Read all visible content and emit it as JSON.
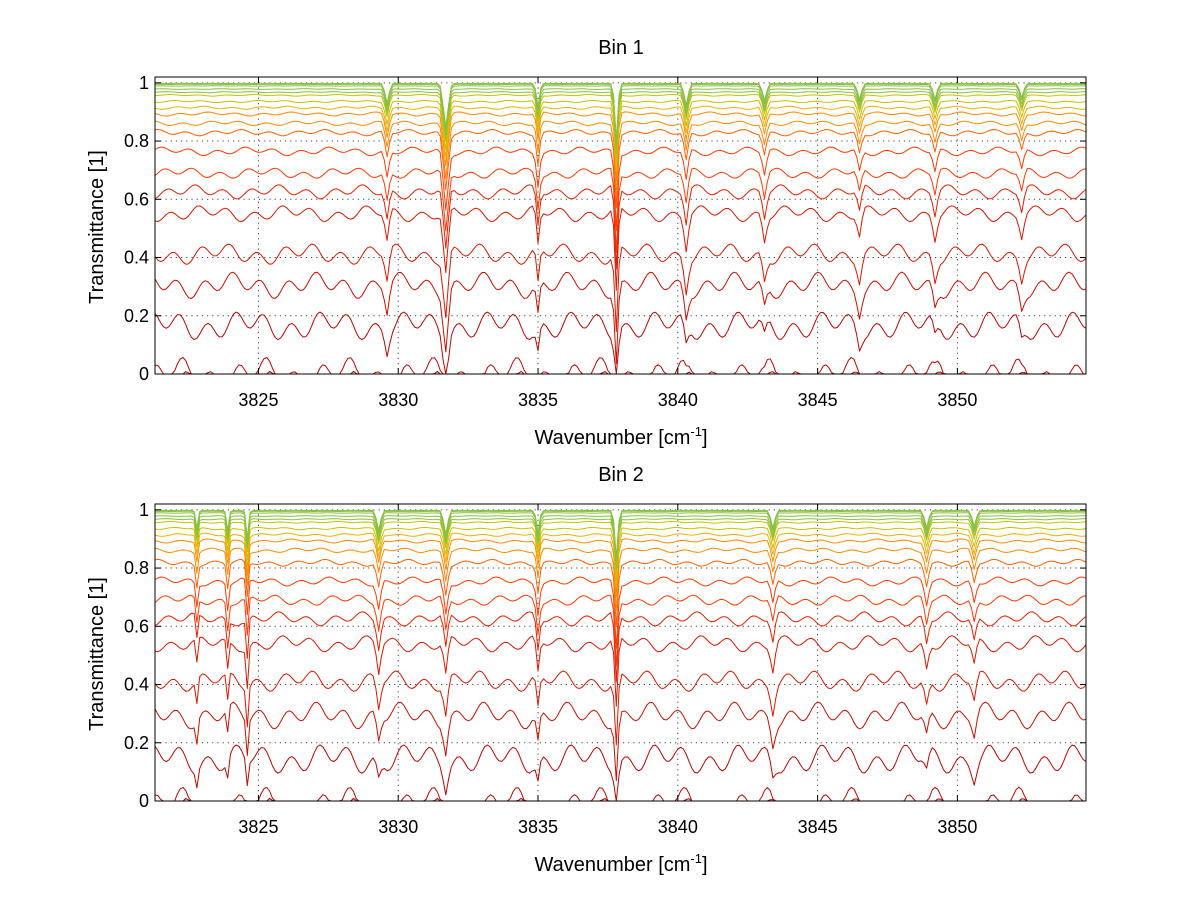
{
  "chart_data": [
    {
      "type": "line",
      "title": "Bin 1",
      "xlabel": "Wavenumber [cm",
      "xlabel_sup": "-1",
      "xlabel_end": "]",
      "ylabel": "Transmittance [1]",
      "xlim": [
        3821.3,
        3854.6
      ],
      "ylim": [
        0,
        1.02
      ],
      "xticks": [
        3825,
        3830,
        3835,
        3840,
        3845,
        3850
      ],
      "xtick_labels": [
        "3825",
        "3830",
        "3835",
        "3840",
        "3845",
        "3850"
      ],
      "yticks": [
        0,
        0.2,
        0.4,
        0.6,
        0.8,
        1
      ],
      "ytick_labels": [
        "0",
        "0.2",
        "0.4",
        "0.6",
        "0.8",
        "1"
      ],
      "grid": true,
      "x_start": 3821.3,
      "x_end": 3854.6,
      "x_step": 0.1,
      "series_levels": [
        0.002,
        0.01,
        0.06,
        0.22,
        0.35,
        0.45,
        0.58,
        0.65,
        0.71,
        0.78,
        0.84,
        0.87,
        0.9,
        0.92,
        0.94,
        0.96,
        0.97,
        0.98,
        0.99,
        0.995,
        0.998
      ],
      "absorption_lines": [
        {
          "center": 3831.7,
          "depth": 0.55,
          "width": 0.12
        },
        {
          "center": 3837.8,
          "depth": 0.72,
          "width": 0.08
        },
        {
          "center": 3829.6,
          "depth": 0.25,
          "width": 0.1
        },
        {
          "center": 3835.0,
          "depth": 0.3,
          "width": 0.08
        },
        {
          "center": 3840.3,
          "depth": 0.28,
          "width": 0.1
        },
        {
          "center": 3843.1,
          "depth": 0.22,
          "width": 0.1
        },
        {
          "center": 3846.5,
          "depth": 0.2,
          "width": 0.1
        },
        {
          "center": 3849.2,
          "depth": 0.2,
          "width": 0.1
        },
        {
          "center": 3852.3,
          "depth": 0.18,
          "width": 0.1
        }
      ],
      "colors": [
        "#a80000",
        "#b80800",
        "#c81000",
        "#d81800",
        "#e82000",
        "#ff3a00",
        "#ff6000",
        "#ff8a00",
        "#f0b000",
        "#c8c000",
        "#88c040"
      ]
    },
    {
      "type": "line",
      "title": "Bin 2",
      "xlabel": "Wavenumber [cm",
      "xlabel_sup": "-1",
      "xlabel_end": "]",
      "ylabel": "Transmittance [1]",
      "xlim": [
        3821.3,
        3854.6
      ],
      "ylim": [
        0,
        1.02
      ],
      "xticks": [
        3825,
        3830,
        3835,
        3840,
        3845,
        3850
      ],
      "xtick_labels": [
        "3825",
        "3830",
        "3835",
        "3840",
        "3845",
        "3850"
      ],
      "yticks": [
        0,
        0.2,
        0.4,
        0.6,
        0.8,
        1
      ],
      "ytick_labels": [
        "0",
        "0.2",
        "0.4",
        "0.6",
        "0.8",
        "1"
      ],
      "grid": true,
      "x_start": 3821.3,
      "x_end": 3854.6,
      "x_step": 0.1,
      "series_levels": [
        0.002,
        0.01,
        0.05,
        0.2,
        0.34,
        0.45,
        0.57,
        0.65,
        0.71,
        0.77,
        0.83,
        0.87,
        0.9,
        0.92,
        0.94,
        0.96,
        0.97,
        0.98,
        0.99,
        0.995,
        0.998
      ],
      "absorption_lines": [
        {
          "center": 3824.6,
          "depth": 0.35,
          "width": 0.06
        },
        {
          "center": 3823.9,
          "depth": 0.25,
          "width": 0.06
        },
        {
          "center": 3822.8,
          "depth": 0.22,
          "width": 0.06
        },
        {
          "center": 3837.8,
          "depth": 0.6,
          "width": 0.08
        },
        {
          "center": 3831.7,
          "depth": 0.3,
          "width": 0.1
        },
        {
          "center": 3835.0,
          "depth": 0.28,
          "width": 0.08
        },
        {
          "center": 3829.3,
          "depth": 0.25,
          "width": 0.1
        },
        {
          "center": 3843.4,
          "depth": 0.22,
          "width": 0.1
        },
        {
          "center": 3848.9,
          "depth": 0.22,
          "width": 0.1
        },
        {
          "center": 3850.6,
          "depth": 0.2,
          "width": 0.1
        }
      ],
      "colors": [
        "#a80000",
        "#b80800",
        "#c81000",
        "#d81800",
        "#e82000",
        "#ff3a00",
        "#ff6000",
        "#ff8a00",
        "#f0b000",
        "#c8c000",
        "#88c040"
      ]
    }
  ]
}
